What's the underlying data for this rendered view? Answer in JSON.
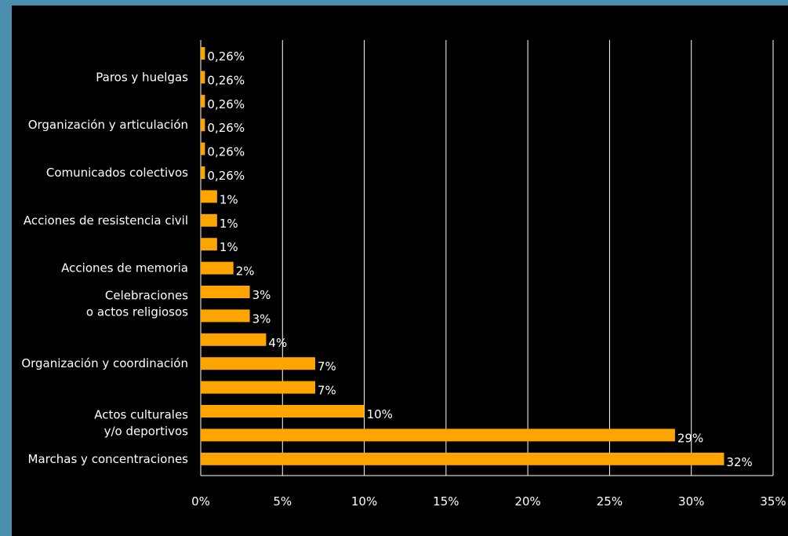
{
  "chart_data": {
    "type": "bar",
    "orientation": "horizontal",
    "bars_top_to_bottom": [
      {
        "value": 0.26,
        "label": "0,26%"
      },
      {
        "value": 0.26,
        "label": "0,26%"
      },
      {
        "value": 0.26,
        "label": "0,26%"
      },
      {
        "value": 0.26,
        "label": "0,26%"
      },
      {
        "value": 0.26,
        "label": "0,26%"
      },
      {
        "value": 0.26,
        "label": "0,26%"
      },
      {
        "value": 1,
        "label": "1%"
      },
      {
        "value": 1,
        "label": "1%"
      },
      {
        "value": 1,
        "label": "1%"
      },
      {
        "value": 2,
        "label": "2%"
      },
      {
        "value": 3,
        "label": "3%"
      },
      {
        "value": 3,
        "label": "3%"
      },
      {
        "value": 4,
        "label": "4%"
      },
      {
        "value": 7,
        "label": "7%"
      },
      {
        "value": 7,
        "label": "7%"
      },
      {
        "value": 10,
        "label": "10%"
      },
      {
        "value": 29,
        "label": "29%"
      },
      {
        "value": 32,
        "label": "32%"
      }
    ],
    "category_labels": [
      {
        "text": [
          "Paros y huelgas"
        ],
        "at_bar": 1
      },
      {
        "text": [
          "Organización y articulación"
        ],
        "at_bar": 3
      },
      {
        "text": [
          "Comunicados colectivos"
        ],
        "at_bar": 5
      },
      {
        "text": [
          "Acciones de resistencia civil"
        ],
        "at_bar": 7
      },
      {
        "text": [
          "Acciones de memoria"
        ],
        "at_bar": 9
      },
      {
        "text": [
          "Celebraciones",
          "o actos religiosos"
        ],
        "at_bar": 10.5
      },
      {
        "text": [
          "Organización y coordinación"
        ],
        "at_bar": 13
      },
      {
        "text": [
          "Actos culturales",
          "y/o deportivos"
        ],
        "at_bar": 15.5
      },
      {
        "text": [
          "Marchas y concentraciones"
        ],
        "at_bar": 17
      }
    ],
    "x_ticks": [
      "0%",
      "5%",
      "10%",
      "15%",
      "20%",
      "25%",
      "30%",
      "35%"
    ],
    "xlim": [
      0,
      35
    ],
    "bar_color": "#ffa500",
    "grid": true
  }
}
